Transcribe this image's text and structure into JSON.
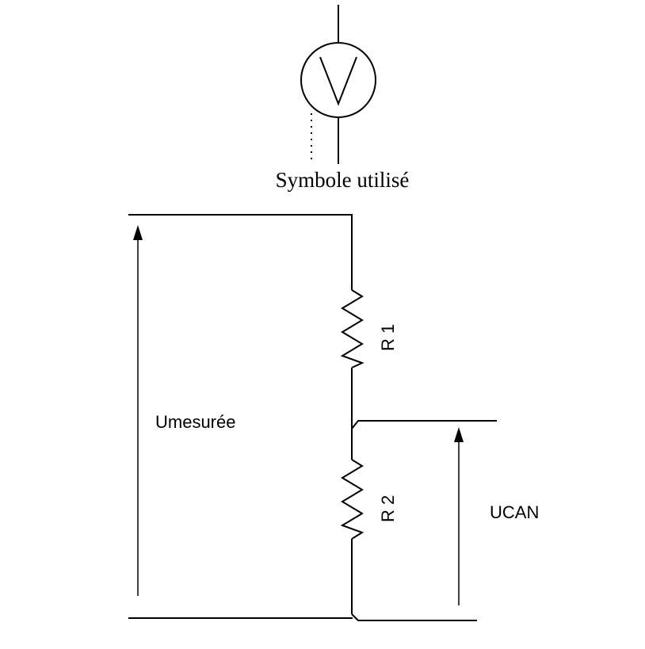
{
  "symbol_caption": "Symbole utilisé",
  "voltmeter_symbol": {
    "icon": "voltmeter-icon",
    "glyph": "V"
  },
  "labels": {
    "u_measured": "Umesurée",
    "r1": "R 1",
    "r2": "R 2",
    "u_can": "UCAN"
  },
  "colors": {
    "line": "#000000",
    "background": "#ffffff"
  }
}
